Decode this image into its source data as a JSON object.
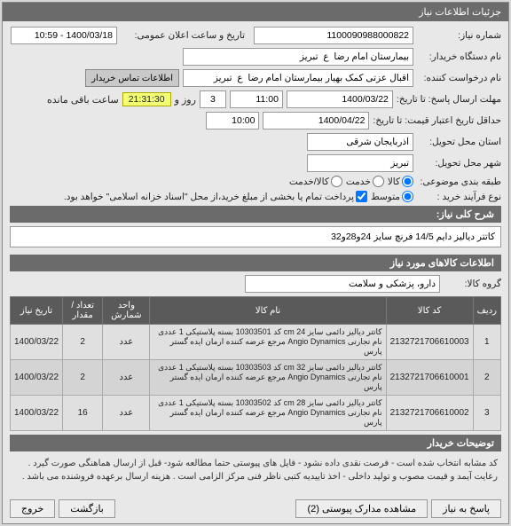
{
  "header": {
    "title": "جزئیات اطلاعات نیاز"
  },
  "form": {
    "need_no_label": "شماره نیاز:",
    "need_no": "1100090988000822",
    "public_date_label": "تاریخ و ساعت اعلان عمومی:",
    "public_date": "1400/03/18 - 10:59",
    "buyer_device_label": "نام دستگاه خریدار:",
    "buyer_device": "بیمارستان امام رضا  ع  تبریز",
    "requester_label": "نام درخواست کننده:",
    "requester": "اقبال عزتی کمک بهیار بیمارستان امام رضا  ع  تبریز",
    "contact_btn": "اطلاعات تماس خریدار",
    "deadline_send_label": "مهلت ارسال پاسخ: تا تاریخ:",
    "deadline_send_date": "1400/03/22",
    "time1": "11:00",
    "days_label_prefix": "",
    "days_val": "3",
    "days_label": "روز و",
    "countdown": "21:31:30",
    "remain_label": "ساعت باقی مانده",
    "validity_label": "حداقل تاریخ اعتبار قیمت: تا تاریخ:",
    "validity_date": "1400/04/22",
    "time2": "10:00",
    "delivery_province_label": "استان محل تحویل:",
    "delivery_province": "آذربایجان شرقی",
    "delivery_city_label": "شهر محل تحویل:",
    "delivery_city": "تبریز",
    "budget_label": "طبقه بندی موضوعی:",
    "budget_opt1": "کالا",
    "budget_opt2": "خدمت",
    "budget_opt3": "کالا/خدمت",
    "process_type_label": "نوع فرآیند خرید :",
    "process_opt1": "متوسط",
    "process_note": "پرداخت تمام یا بخشی از مبلغ خرید،از محل \"اسناد خزانه اسلامی\" خواهد بود."
  },
  "sections": {
    "desc_title": "شرح کلی نیاز:",
    "desc_value": "کاتتر دیالیز دایم 14/5 فرنچ سایز 24و28و32",
    "items_title": "اطلاعات کالاهای مورد نیاز",
    "group_label": "گروه کالا:",
    "group_value": "دارو، پزشکی و سلامت",
    "notes_title": "توضیحات خریدار"
  },
  "table": {
    "cols": [
      "ردیف",
      "کد کالا",
      "نام کالا",
      "واحد شمارش",
      "تعداد / مقدار",
      "تاریخ نیاز"
    ],
    "rows": [
      [
        "1",
        "2132721706610003",
        "کاتتر دیالیز دائمی سایز cm 24 کد 10303501 بسته پلاستیکی 1 عددی نام تجارتی Angio Dynamics مرجع عرضه کننده ارمان ایده گستر پارس",
        "عدد",
        "2",
        "1400/03/22"
      ],
      [
        "2",
        "2132721706610001",
        "کاتتر دیالیز دائمی سایز cm 32 کد 10303503 بسته پلاستیکی 1 عددی نام تجارتی Angio Dynamics مرجع عرضه کننده ارمان ایده گستر پارس",
        "عدد",
        "2",
        "1400/03/22"
      ],
      [
        "3",
        "2132721706610002",
        "کاتتر دیالیز دائمی سایز cm 28 کد 10303502 بسته پلاستیکی 1 عددی نام تجارتی Angio Dynamics مرجع عرضه کننده ارمان ایده گستر پارس",
        "عدد",
        "16",
        "1400/03/22"
      ]
    ]
  },
  "notes_text": "کد مشابه انتخاب شده است - فرصت نقدی داده نشود - فایل های پیوستی حتما مطالعه شود- قبل از ارسال هماهنگی صورت گیرد . رعایت آیمد و قیمت مصوب و تولید داخلی -  اخذ تاییدیه کتبی ناظر فنی مرکز الزامی است . هزینه ارسال برعهده فروشنده می باشد .",
  "footer": {
    "answer": "پاسخ به نیاز",
    "attachments": "مشاهده مدارک پیوستی (2)",
    "back": "بازگشت",
    "exit": "خروج"
  }
}
